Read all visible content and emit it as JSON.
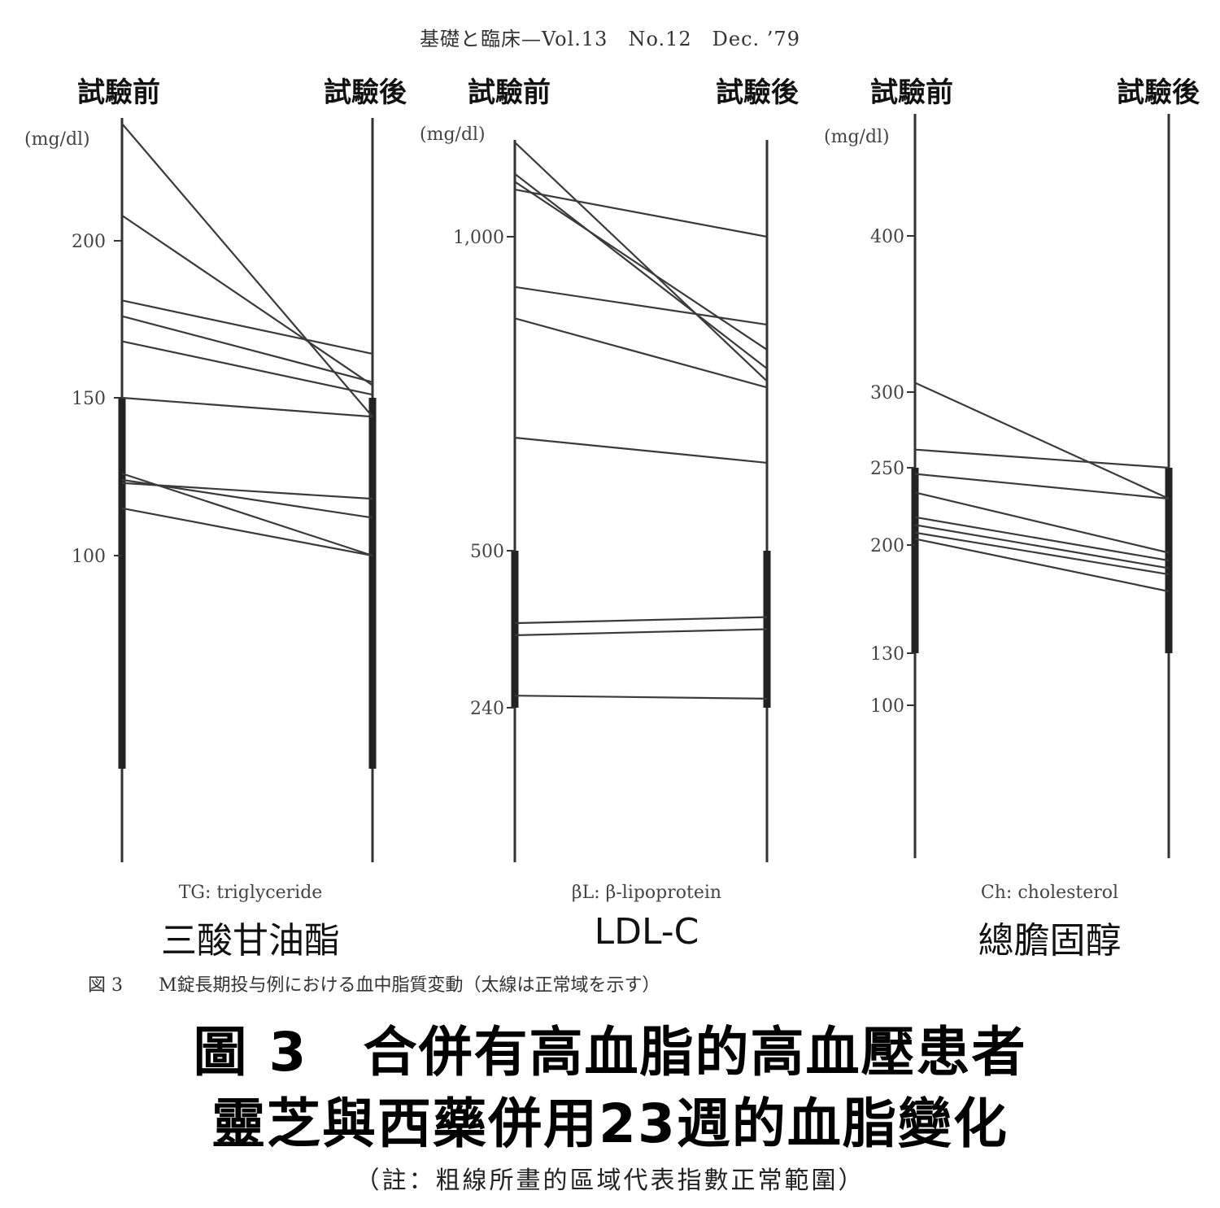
{
  "header": "基礎と臨床—Vol.13　No.12　Dec. ’79",
  "labels": {
    "before": "試驗前",
    "after": "試驗後"
  },
  "figure_note": "図 3　　M錠長期投与例における血中脂質変動（太線は正常域を示す）",
  "title": {
    "line1": "圖 3　合併有高血脂的高血壓患者",
    "line2": "靈芝與西藥併用23週的血脂變化"
  },
  "footnote": "（註：粗線所畫的區域代表指數正常範圍）",
  "chart_data": [
    {
      "type": "line",
      "name_en": "TG: triglyceride",
      "name_zh": "三酸甘油酯",
      "unit": "(mg/dl)",
      "x": [
        "試驗前",
        "試驗後"
      ],
      "ticks": [
        100,
        150,
        200
      ],
      "tick_labels": [
        "100",
        "150",
        "200"
      ],
      "normal_range": [
        33,
        150
      ],
      "series": [
        {
          "values": [
            237,
            144
          ]
        },
        {
          "values": [
            208,
            154
          ]
        },
        {
          "values": [
            181,
            164
          ]
        },
        {
          "values": [
            176,
            155
          ]
        },
        {
          "values": [
            168,
            151
          ]
        },
        {
          "values": [
            150,
            144
          ]
        },
        {
          "values": [
            126,
            100
          ]
        },
        {
          "values": [
            124,
            112
          ]
        },
        {
          "values": [
            123,
            118
          ]
        },
        {
          "values": [
            115,
            100
          ]
        }
      ]
    },
    {
      "type": "line",
      "name_en": "βL: β-lipoprotein",
      "name_zh": "LDL-C",
      "unit": "(mg/dl)",
      "x": [
        "試驗前",
        "試驗後"
      ],
      "ticks": [
        240,
        500,
        1000
      ],
      "tick_labels": [
        "240",
        "500",
        "1,000"
      ],
      "normal_range": [
        240,
        500
      ],
      "series": [
        {
          "values": [
            1120,
            770
          ]
        },
        {
          "values": [
            1080,
            790
          ]
        },
        {
          "values": [
            1070,
            820
          ]
        },
        {
          "values": [
            1060,
            1000
          ]
        },
        {
          "values": [
            920,
            860
          ]
        },
        {
          "values": [
            870,
            760
          ]
        },
        {
          "values": [
            680,
            640
          ]
        },
        {
          "values": [
            380,
            390
          ]
        },
        {
          "values": [
            360,
            370
          ]
        },
        {
          "values": [
            260,
            255
          ]
        }
      ]
    },
    {
      "type": "line",
      "name_en": "Ch: cholesterol",
      "name_zh": "總膽固醇",
      "unit": "(mg/dl)",
      "x": [
        "試驗前",
        "試驗後"
      ],
      "ticks": [
        100,
        130,
        200,
        250,
        300,
        400
      ],
      "tick_labels": [
        "100",
        "130",
        "200",
        "250",
        "300",
        "400"
      ],
      "normal_range": [
        130,
        250
      ],
      "series": [
        {
          "values": [
            306,
            230
          ]
        },
        {
          "values": [
            262,
            250
          ]
        },
        {
          "values": [
            246,
            230
          ]
        },
        {
          "values": [
            234,
            195
          ]
        },
        {
          "values": [
            218,
            190
          ]
        },
        {
          "values": [
            213,
            185
          ]
        },
        {
          "values": [
            208,
            181
          ]
        },
        {
          "values": [
            204,
            170
          ]
        }
      ]
    }
  ]
}
